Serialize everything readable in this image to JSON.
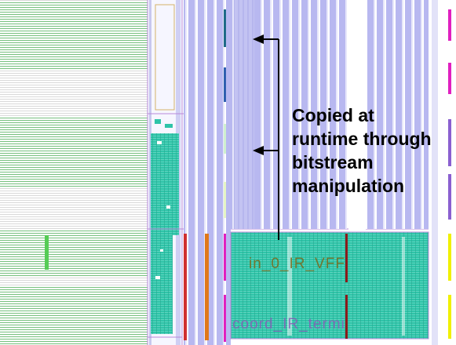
{
  "annotation": {
    "lines": [
      "Copied at",
      "runtime through",
      "bitstream",
      "manipulation"
    ]
  },
  "block_labels": {
    "instance": "in_0_IR_VFF",
    "tile": "coord_IR_termi"
  },
  "colors": {
    "background": "#ffffff",
    "routing_green": "#2e9e3a",
    "cell_teal": "#2ec4a8",
    "column_lavender": "#b8b8f0",
    "boundary_purple": "#b88ad8",
    "marker_orange": "#e07818",
    "marker_red": "#d03030",
    "marker_magenta": "#e020c0",
    "marker_yellow": "#f0f000",
    "marker_blue": "#3060b0",
    "arrow": "#000000"
  },
  "icons": {
    "arrows": "arrow-left-icon"
  }
}
